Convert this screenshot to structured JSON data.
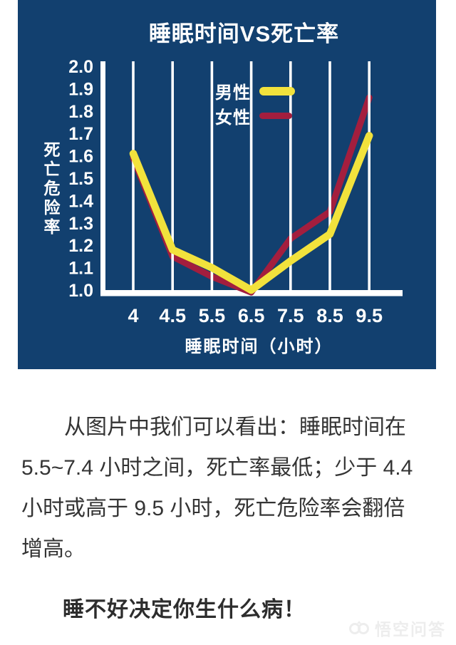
{
  "chart_data": {
    "type": "line",
    "title": "睡眠时间VS死亡率",
    "xlabel": "睡眠时间（小时）",
    "ylabel": "死亡危险率",
    "categories": [
      "4",
      "4.5",
      "5.5",
      "6.5",
      "7.5",
      "8.5",
      "9.5"
    ],
    "series": [
      {
        "name": "男性",
        "color": "#f2e23c",
        "values": [
          1.61,
          1.18,
          1.1,
          1.0,
          1.13,
          1.25,
          1.69
        ]
      },
      {
        "name": "女性",
        "color": "#a31e3e",
        "values": [
          1.59,
          1.15,
          1.06,
          0.99,
          1.23,
          1.35,
          1.86
        ]
      }
    ],
    "ylim": [
      1.0,
      2.0
    ],
    "y_ticks": [
      "2.0",
      "1.9",
      "1.8",
      "1.7",
      "1.6",
      "1.5",
      "1.4",
      "1.3",
      "1.2",
      "1.1",
      "1.0"
    ],
    "grid": "vertical-only",
    "legend_position": "top-center",
    "panel_bg": "#12406f",
    "axis_color": "#ffffff"
  },
  "article": {
    "paragraph": "从图片中我们可以看出：睡眠时间在 5.5~7.4 小时之间，死亡率最低；少于 4.4 小时或高于 9.5 小时，死亡危险率会翻倍增高。",
    "heading": "睡不好决定你生什么病！"
  },
  "watermark": {
    "text": "悟空问答"
  }
}
